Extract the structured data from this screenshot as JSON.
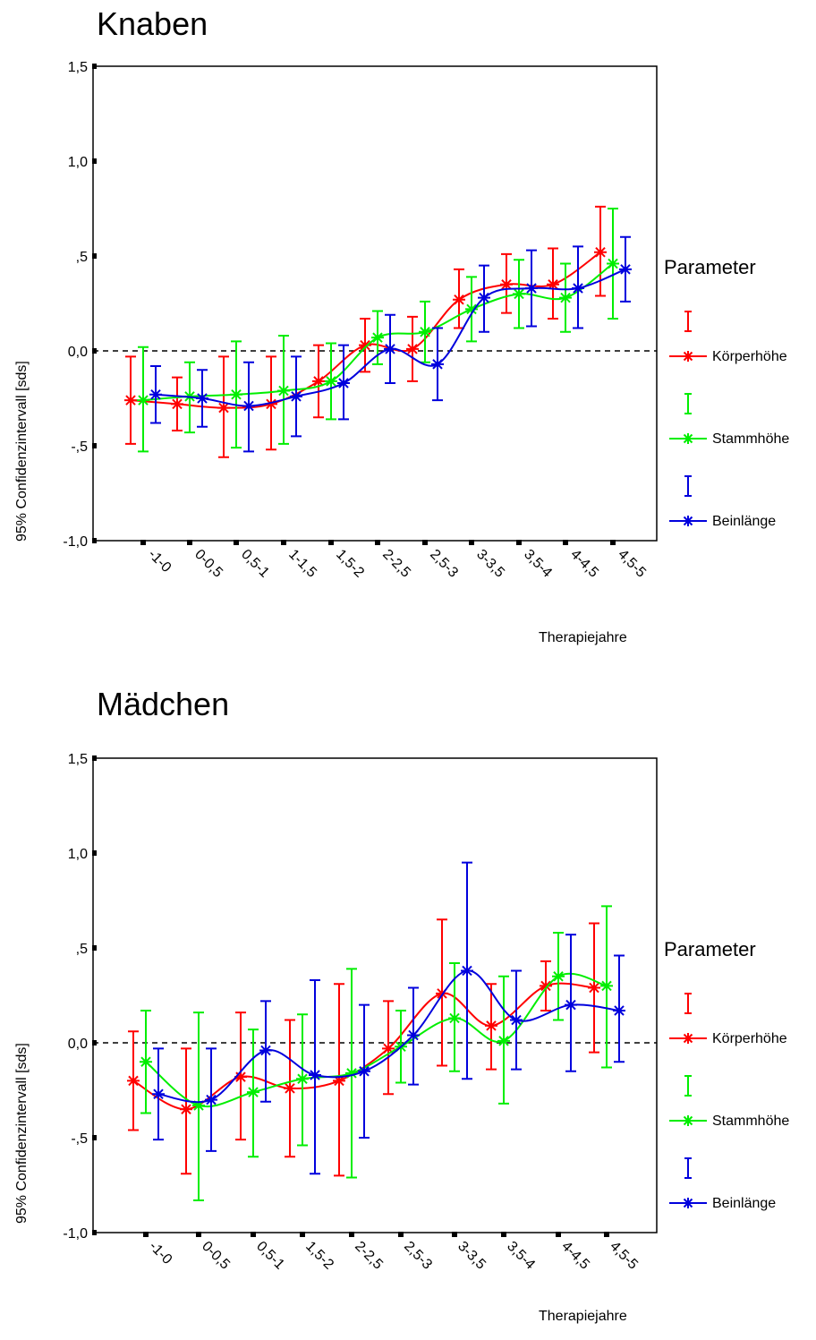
{
  "colors": {
    "Körperhöhe": "#ff0000",
    "Stammhöhe": "#00ee00",
    "Beinlänge": "#0000dd"
  },
  "chart_data": [
    {
      "type": "line",
      "title": "Knaben",
      "xlabel": "Therapiejahre",
      "ylabel": "95% Confidenzintervall [sds]",
      "ylim": [
        -1.0,
        1.5
      ],
      "yticks": [
        "1,5",
        "1,0",
        ",5",
        "0,0",
        "-,5",
        "-1,0"
      ],
      "categories": [
        "-1-0",
        "0-0,5",
        "0,5-1",
        "1-1,5",
        "1,5-2",
        "2-2,5",
        "2,5-3",
        "3-3,5",
        "3,5-4",
        "4-4,5",
        "4,5-5"
      ],
      "legend_title": "Parameter",
      "reference_line": 0,
      "series": [
        {
          "name": "Körperhöhe",
          "color": "#ff0000",
          "mean": [
            -0.26,
            -0.28,
            -0.3,
            -0.28,
            -0.16,
            0.03,
            0.01,
            0.27,
            0.35,
            0.35,
            0.52
          ],
          "lower": [
            -0.49,
            -0.42,
            -0.56,
            -0.52,
            -0.35,
            -0.11,
            -0.16,
            0.12,
            0.2,
            0.17,
            0.29
          ],
          "upper": [
            -0.03,
            -0.14,
            -0.03,
            -0.03,
            0.03,
            0.17,
            0.18,
            0.43,
            0.51,
            0.54,
            0.76
          ]
        },
        {
          "name": "Stammhöhe",
          "color": "#00ee00",
          "mean": [
            -0.26,
            -0.24,
            -0.23,
            -0.21,
            -0.16,
            0.07,
            0.1,
            0.22,
            0.3,
            0.28,
            0.46
          ],
          "lower": [
            -0.53,
            -0.43,
            -0.51,
            -0.49,
            -0.36,
            -0.07,
            -0.06,
            0.05,
            0.12,
            0.1,
            0.17
          ],
          "upper": [
            0.02,
            -0.06,
            0.05,
            0.08,
            0.04,
            0.21,
            0.26,
            0.39,
            0.48,
            0.46,
            0.75
          ]
        },
        {
          "name": "Beinlänge",
          "color": "#0000dd",
          "mean": [
            -0.23,
            -0.25,
            -0.29,
            -0.24,
            -0.17,
            0.01,
            -0.07,
            0.28,
            0.33,
            0.33,
            0.43
          ],
          "lower": [
            -0.38,
            -0.4,
            -0.53,
            -0.45,
            -0.36,
            -0.17,
            -0.26,
            0.1,
            0.13,
            0.12,
            0.26
          ],
          "upper": [
            -0.08,
            -0.1,
            -0.06,
            -0.03,
            0.03,
            0.19,
            0.12,
            0.45,
            0.53,
            0.55,
            0.6
          ]
        }
      ]
    },
    {
      "type": "line",
      "title": "Mädchen",
      "xlabel": "Therapiejahre",
      "ylabel": "95% Confidenzintervall [sds]",
      "ylim": [
        -1.0,
        1.5
      ],
      "yticks": [
        "1,5",
        "1,0",
        ",5",
        "0,0",
        "-,5",
        "-1,0"
      ],
      "categories": [
        "-1-0",
        "0-0,5",
        "0,5-1",
        "1,5-2",
        "2-2,5",
        "2,5-3",
        "3-3,5",
        "3,5-4",
        "4-4,5",
        "4,5-5"
      ],
      "legend_title": "Parameter",
      "reference_line": 0,
      "series": [
        {
          "name": "Körperhöhe",
          "color": "#ff0000",
          "mean": [
            -0.2,
            -0.35,
            -0.18,
            -0.24,
            -0.2,
            -0.03,
            0.26,
            0.09,
            0.3,
            0.29
          ],
          "lower": [
            -0.46,
            -0.69,
            -0.51,
            -0.6,
            -0.7,
            -0.27,
            -0.12,
            -0.14,
            0.17,
            -0.05
          ],
          "upper": [
            0.06,
            -0.03,
            0.16,
            0.12,
            0.31,
            0.22,
            0.65,
            0.31,
            0.43,
            0.63
          ]
        },
        {
          "name": "Stammhöhe",
          "color": "#00ee00",
          "mean": [
            -0.1,
            -0.33,
            -0.26,
            -0.19,
            -0.16,
            -0.02,
            0.13,
            0.01,
            0.35,
            0.3
          ],
          "lower": [
            -0.37,
            -0.83,
            -0.6,
            -0.54,
            -0.71,
            -0.21,
            -0.15,
            -0.32,
            0.12,
            -0.13
          ],
          "upper": [
            0.17,
            0.16,
            0.07,
            0.15,
            0.39,
            0.17,
            0.42,
            0.35,
            0.58,
            0.72
          ]
        },
        {
          "name": "Beinlänge",
          "color": "#0000dd",
          "mean": [
            -0.27,
            -0.3,
            -0.04,
            -0.17,
            -0.15,
            0.04,
            0.38,
            0.12,
            0.2,
            0.17
          ],
          "lower": [
            -0.51,
            -0.57,
            -0.31,
            -0.69,
            -0.5,
            -0.22,
            -0.19,
            -0.14,
            -0.15,
            -0.1
          ],
          "upper": [
            -0.03,
            -0.03,
            0.22,
            0.33,
            0.2,
            0.29,
            0.95,
            0.38,
            0.57,
            0.46
          ]
        }
      ]
    }
  ]
}
